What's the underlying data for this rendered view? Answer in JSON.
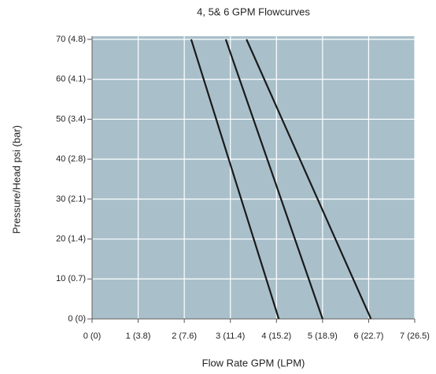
{
  "chart_data": {
    "type": "line",
    "title": "4, 5& 6 GPM Flowcurves",
    "xlabel": "Flow Rate GPM (LPM)",
    "ylabel": "Pressure/Head psi (bar)",
    "series": [
      {
        "color": "#1a1a1a",
        "x": [
          2.15,
          4.05
        ],
        "values": [
          70,
          0
        ]
      },
      {
        "color": "#1a1a1a",
        "x": [
          2.9,
          5.0
        ],
        "values": [
          70,
          0
        ]
      },
      {
        "color": "#1a1a1a",
        "x": [
          3.35,
          6.05
        ],
        "values": [
          70,
          0
        ]
      }
    ],
    "xlim": [
      0,
      7
    ],
    "ylim": [
      0,
      70
    ],
    "xticks": [
      {
        "value": 0,
        "label": "0 (0)"
      },
      {
        "value": 1,
        "label": "1 (3.8)"
      },
      {
        "value": 2,
        "label": "2 (7.6)"
      },
      {
        "value": 3,
        "label": "3 (11.4)"
      },
      {
        "value": 4,
        "label": "4 (15.2)"
      },
      {
        "value": 5,
        "label": "5 (18.9)"
      },
      {
        "value": 6,
        "label": "6 (22.7)"
      },
      {
        "value": 7,
        "label": "7 (26.5)"
      }
    ],
    "yticks": [
      {
        "value": 0,
        "label": "0 (0)"
      },
      {
        "value": 10,
        "label": "10 (0.7)"
      },
      {
        "value": 20,
        "label": "20 (1.4)"
      },
      {
        "value": 30,
        "label": "30 (2.1)"
      },
      {
        "value": 40,
        "label": "40 (2.8)"
      },
      {
        "value": 50,
        "label": "50 (3.4)"
      },
      {
        "value": 60,
        "label": "60 (4.1)"
      },
      {
        "value": 70,
        "label": "70 (4.8)"
      }
    ],
    "grid": true,
    "background": "#a9c0cb"
  }
}
